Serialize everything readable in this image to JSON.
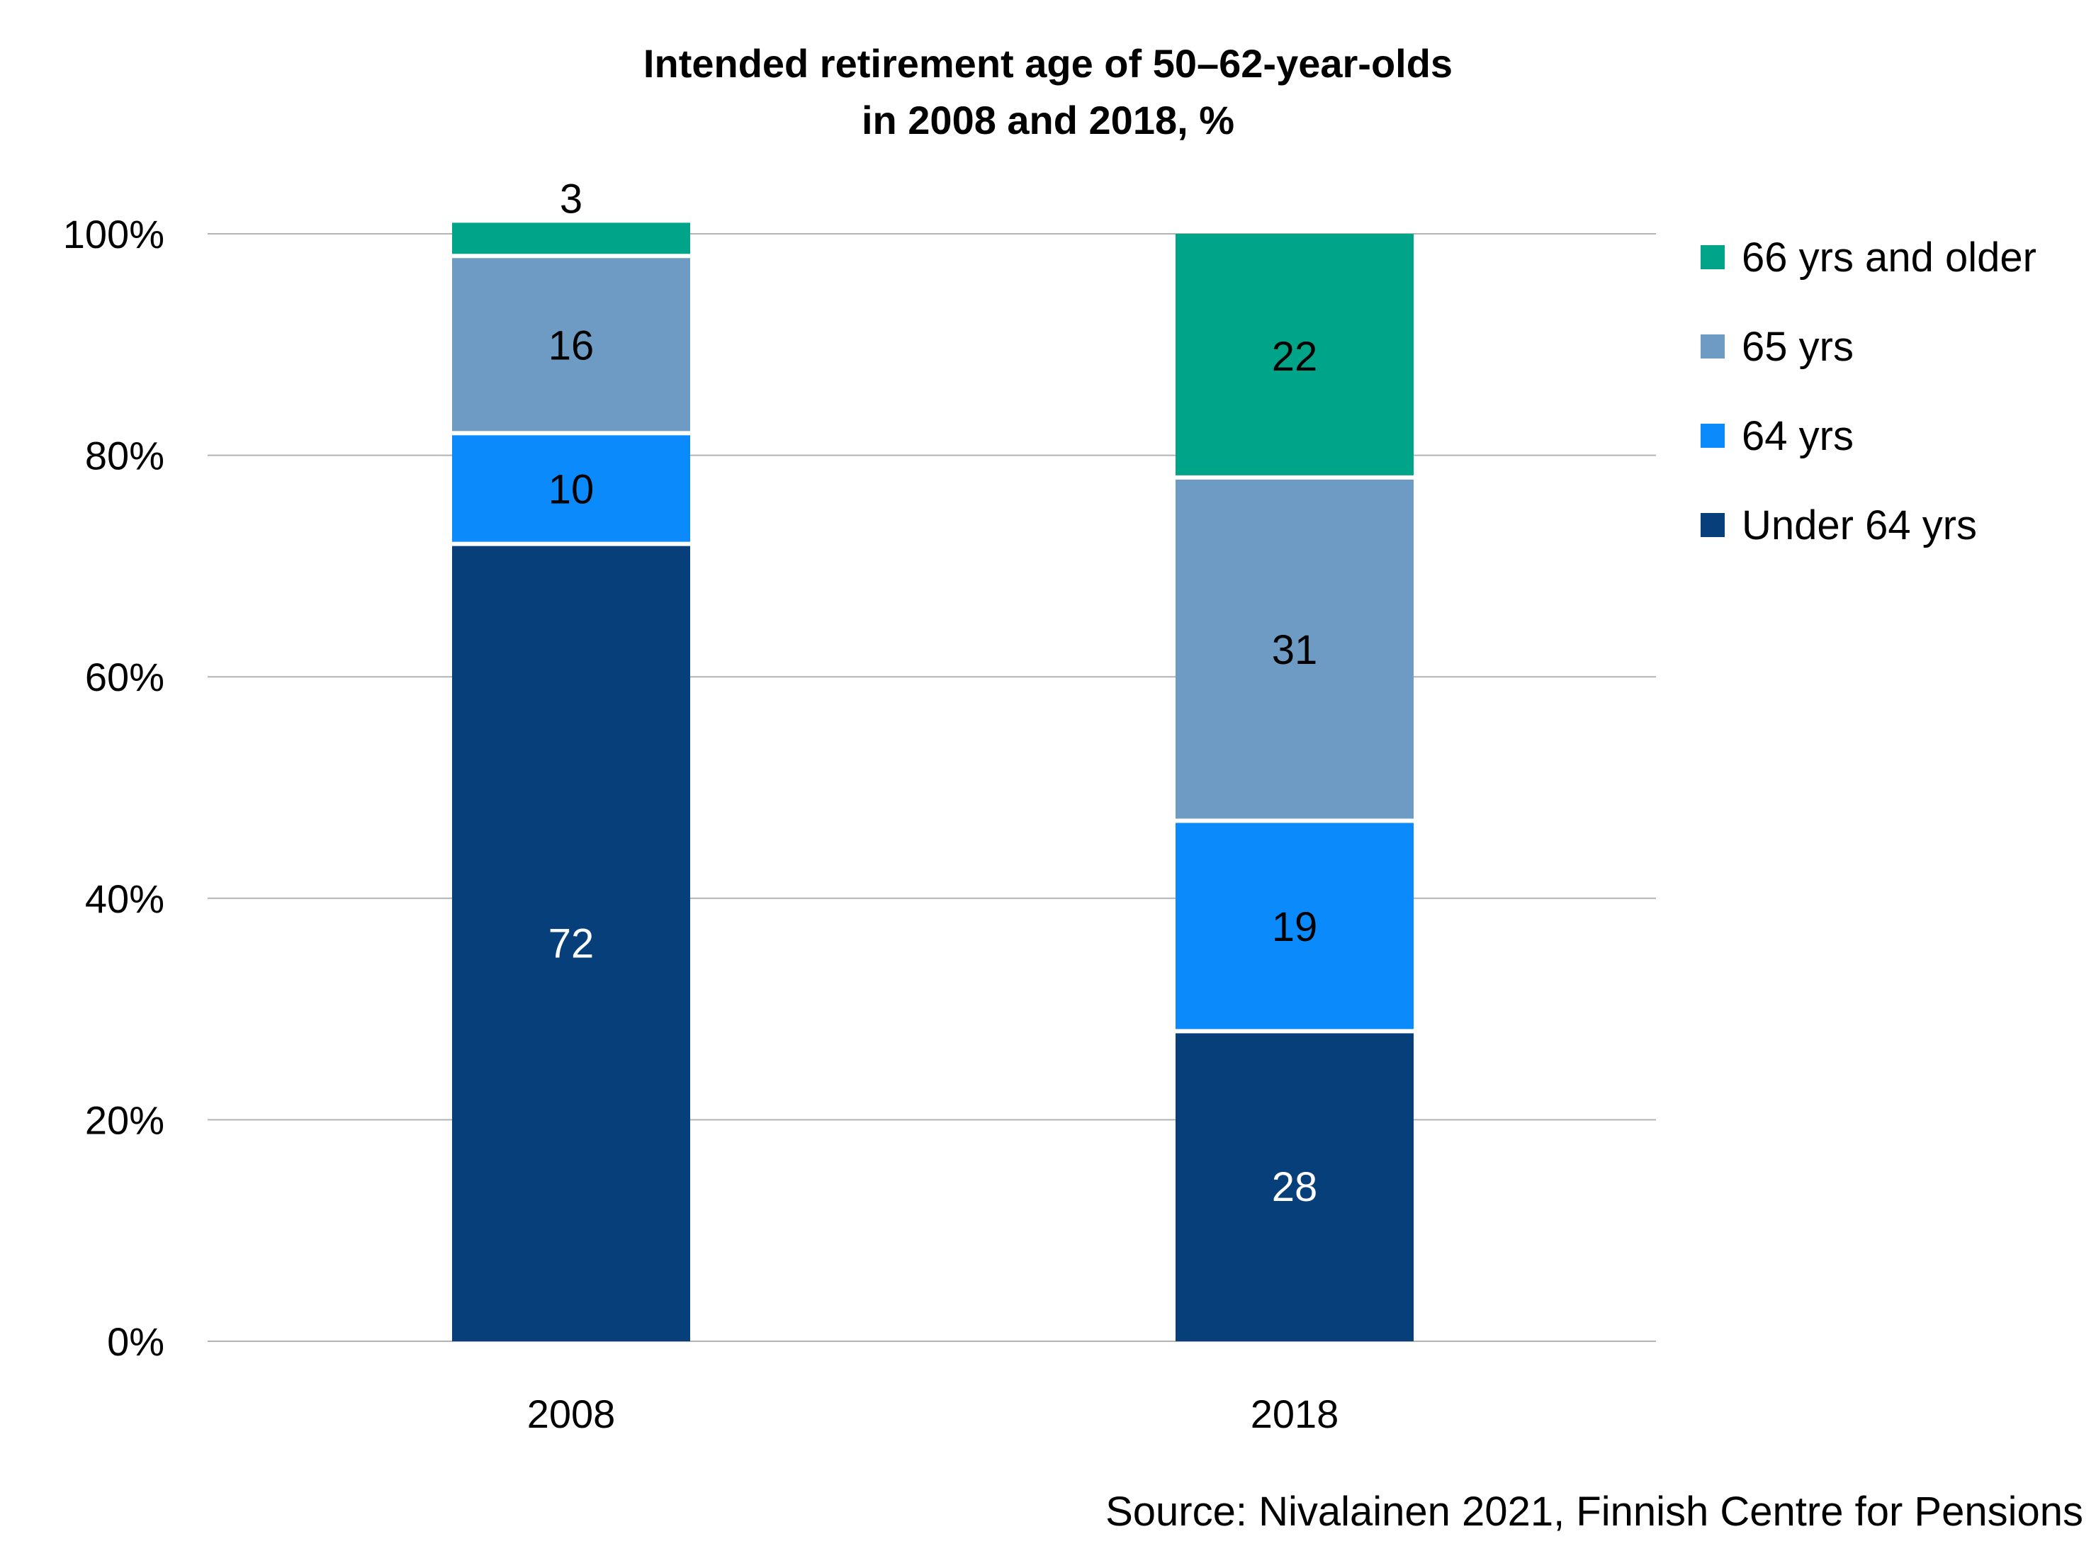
{
  "chart_data": {
    "type": "bar",
    "stacked": true,
    "title_lines": [
      "Intended retirement age of 50–62-year-olds",
      "in 2008 and 2018, %"
    ],
    "categories": [
      "2008",
      "2018"
    ],
    "series": [
      {
        "name": "Under 64 yrs",
        "values": [
          72,
          28
        ],
        "color": "#063F7A",
        "label_color": "#FFFFFF"
      },
      {
        "name": "64 yrs",
        "values": [
          10,
          19
        ],
        "color": "#0A8AFB",
        "label_color": "#000000"
      },
      {
        "name": "65 yrs",
        "values": [
          16,
          31
        ],
        "color": "#6E9BC3",
        "label_color": "#000000"
      },
      {
        "name": "66 yrs and older",
        "values": [
          3,
          22
        ],
        "color": "#00A488",
        "label_color": "#000000"
      }
    ],
    "legend_order": [
      "66 yrs and older",
      "65 yrs",
      "64 yrs",
      "Under 64 yrs"
    ],
    "legend_position": "right",
    "ylim": [
      0,
      100
    ],
    "y_ticks": [
      "0%",
      "20%",
      "40%",
      "60%",
      "80%",
      "100%"
    ],
    "grid": true
  },
  "source": "Source: Nivalainen 2021, Finnish Centre for Pensions"
}
